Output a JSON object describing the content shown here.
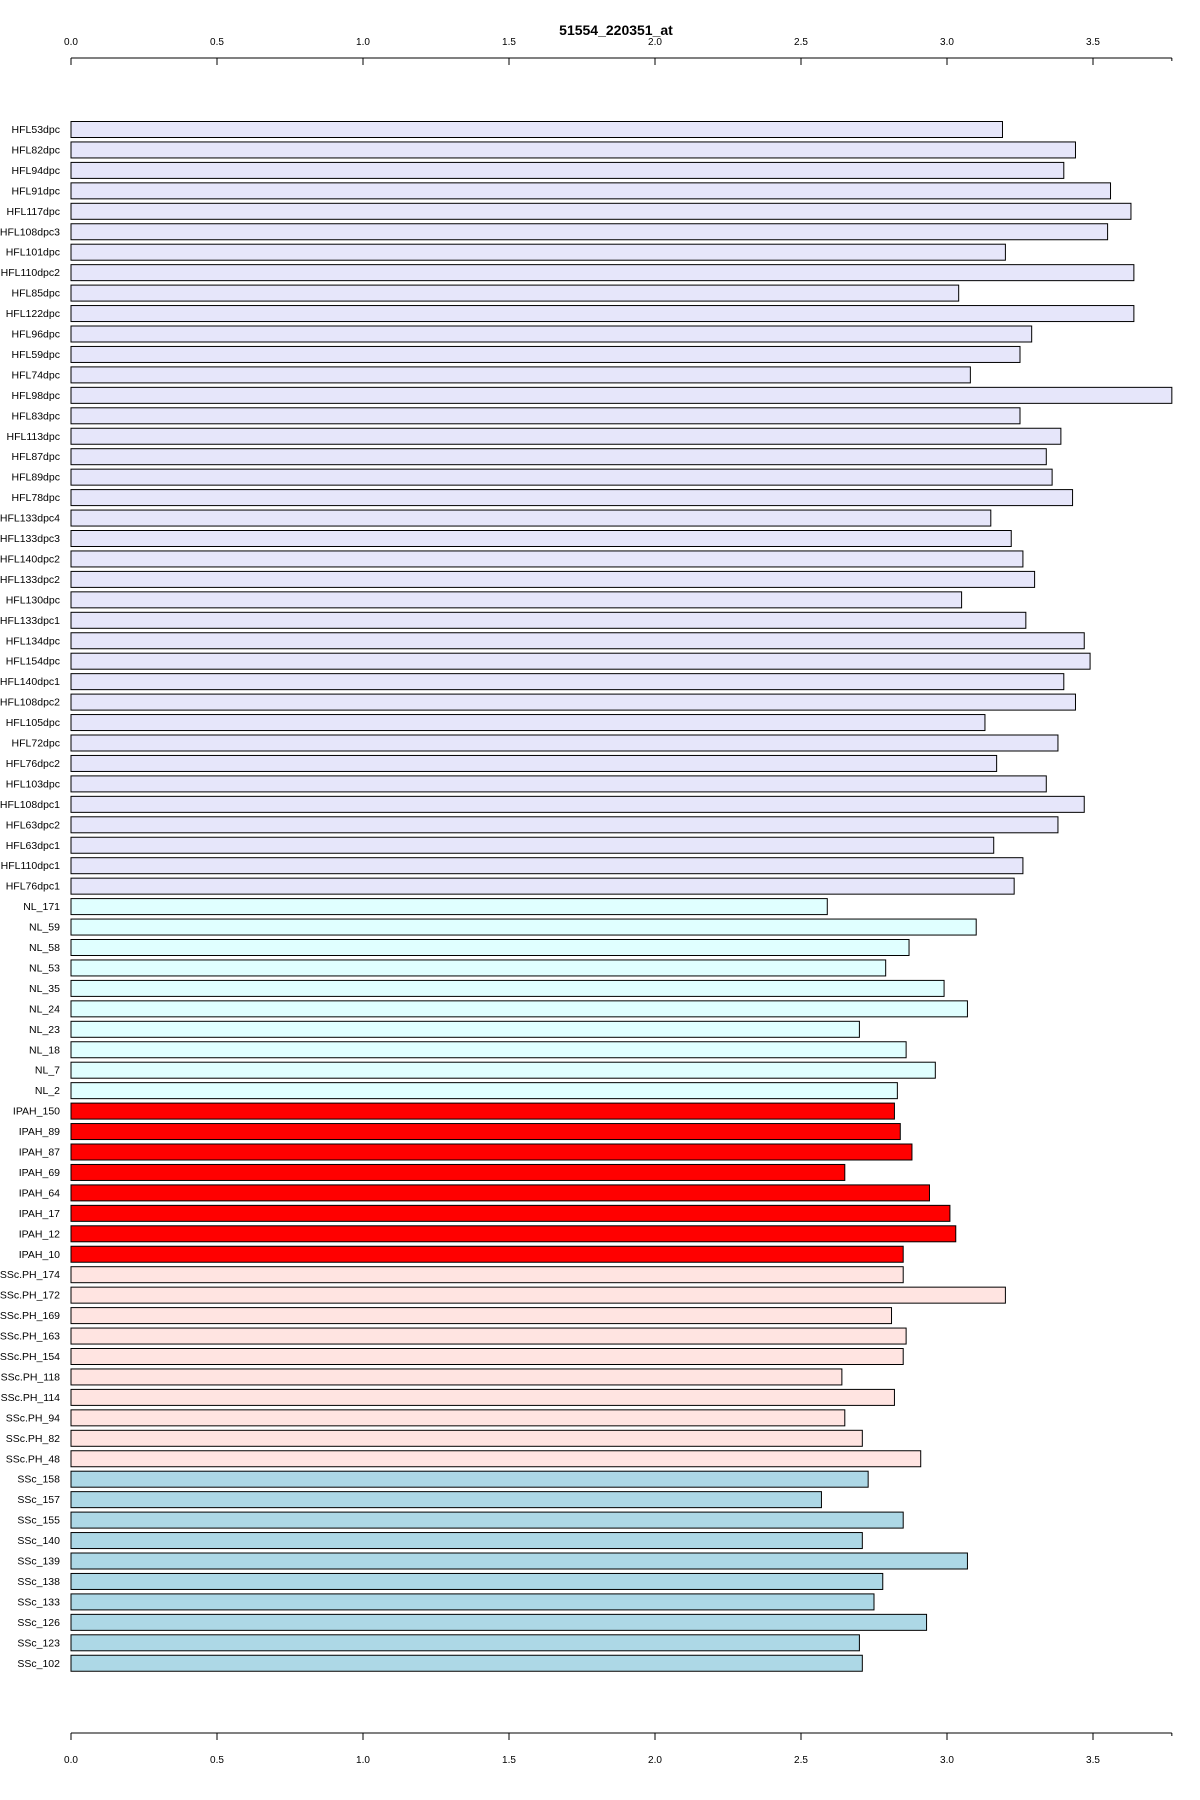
{
  "chart_data": {
    "type": "bar",
    "orientation": "horizontal",
    "title": "51554_220351_at",
    "xlabel": "",
    "ylabel": "",
    "xlim": [
      0,
      3.77
    ],
    "grid": false,
    "axes": [
      "top",
      "bottom"
    ],
    "x_ticks": [
      "0.0",
      "0.5",
      "1.0",
      "1.5",
      "2.0",
      "2.5",
      "3.0",
      "3.5"
    ],
    "colors": {
      "HFL": "#e6e6fa",
      "NL": "#e0ffff",
      "IPAH": "#ff0000",
      "SSc.PH": "#ffe4e1",
      "SSc": "#add8e6"
    },
    "categories": [
      "HFL53dpc",
      "HFL82dpc",
      "HFL94dpc",
      "HFL91dpc",
      "HFL117dpc",
      "HFL108dpc3",
      "HFL101dpc",
      "HFL110dpc2",
      "HFL85dpc",
      "HFL122dpc",
      "HFL96dpc",
      "HFL59dpc",
      "HFL74dpc",
      "HFL98dpc",
      "HFL83dpc",
      "HFL113dpc",
      "HFL87dpc",
      "HFL89dpc",
      "HFL78dpc",
      "HFL133dpc4",
      "HFL133dpc3",
      "HFL140dpc2",
      "HFL133dpc2",
      "HFL130dpc",
      "HFL133dpc1",
      "HFL134dpc",
      "HFL154dpc",
      "HFL140dpc1",
      "HFL108dpc2",
      "HFL105dpc",
      "HFL72dpc",
      "HFL76dpc2",
      "HFL103dpc",
      "HFL108dpc1",
      "HFL63dpc2",
      "HFL63dpc1",
      "HFL110dpc1",
      "HFL76dpc1",
      "NL_171",
      "NL_59",
      "NL_58",
      "NL_53",
      "NL_35",
      "NL_24",
      "NL_23",
      "NL_18",
      "NL_7",
      "NL_2",
      "IPAH_150",
      "IPAH_89",
      "IPAH_87",
      "IPAH_69",
      "IPAH_64",
      "IPAH_17",
      "IPAH_12",
      "IPAH_10",
      "SSc.PH_174",
      "SSc.PH_172",
      "SSc.PH_169",
      "SSc.PH_163",
      "SSc.PH_154",
      "SSc.PH_118",
      "SSc.PH_114",
      "SSc.PH_94",
      "SSc.PH_82",
      "SSc.PH_48",
      "SSc_158",
      "SSc_157",
      "SSc_155",
      "SSc_140",
      "SSc_139",
      "SSc_138",
      "SSc_133",
      "SSc_126",
      "SSc_123",
      "SSc_102"
    ],
    "groups": [
      "HFL",
      "HFL",
      "HFL",
      "HFL",
      "HFL",
      "HFL",
      "HFL",
      "HFL",
      "HFL",
      "HFL",
      "HFL",
      "HFL",
      "HFL",
      "HFL",
      "HFL",
      "HFL",
      "HFL",
      "HFL",
      "HFL",
      "HFL",
      "HFL",
      "HFL",
      "HFL",
      "HFL",
      "HFL",
      "HFL",
      "HFL",
      "HFL",
      "HFL",
      "HFL",
      "HFL",
      "HFL",
      "HFL",
      "HFL",
      "HFL",
      "HFL",
      "HFL",
      "HFL",
      "NL",
      "NL",
      "NL",
      "NL",
      "NL",
      "NL",
      "NL",
      "NL",
      "NL",
      "NL",
      "IPAH",
      "IPAH",
      "IPAH",
      "IPAH",
      "IPAH",
      "IPAH",
      "IPAH",
      "IPAH",
      "SSc.PH",
      "SSc.PH",
      "SSc.PH",
      "SSc.PH",
      "SSc.PH",
      "SSc.PH",
      "SSc.PH",
      "SSc.PH",
      "SSc.PH",
      "SSc.PH",
      "SSc",
      "SSc",
      "SSc",
      "SSc",
      "SSc",
      "SSc",
      "SSc",
      "SSc",
      "SSc",
      "SSc"
    ],
    "values": [
      3.19,
      3.44,
      3.4,
      3.56,
      3.63,
      3.55,
      3.2,
      3.64,
      3.04,
      3.64,
      3.29,
      3.25,
      3.08,
      3.77,
      3.25,
      3.39,
      3.34,
      3.36,
      3.43,
      3.15,
      3.22,
      3.26,
      3.3,
      3.05,
      3.27,
      3.47,
      3.49,
      3.4,
      3.44,
      3.13,
      3.38,
      3.17,
      3.34,
      3.47,
      3.38,
      3.16,
      3.26,
      3.23,
      2.59,
      3.1,
      2.87,
      2.79,
      2.99,
      3.07,
      2.7,
      2.86,
      2.96,
      2.83,
      2.82,
      2.84,
      2.88,
      2.65,
      2.94,
      3.01,
      3.03,
      2.85,
      2.85,
      3.2,
      2.81,
      2.86,
      2.85,
      2.64,
      2.82,
      2.65,
      2.71,
      2.91,
      2.73,
      2.57,
      2.85,
      2.71,
      3.07,
      2.78,
      2.75,
      2.93,
      2.7,
      2.71
    ]
  }
}
